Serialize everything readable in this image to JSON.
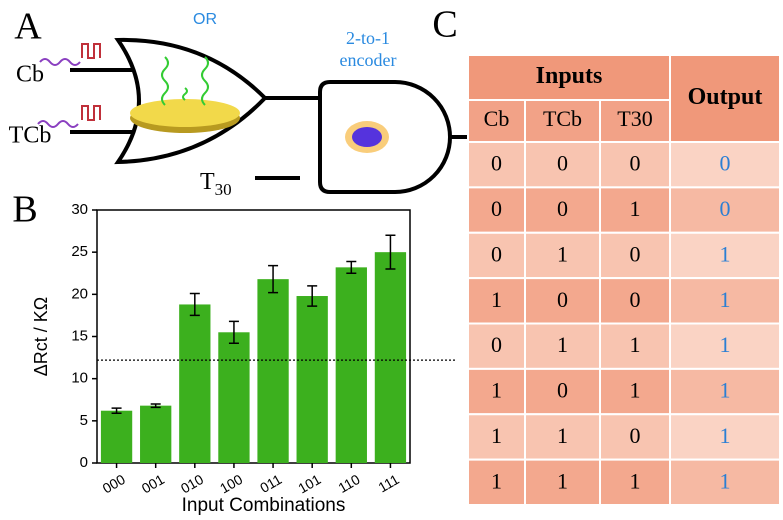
{
  "panel_labels": [
    "A",
    "B",
    "C"
  ],
  "diagram": {
    "gate1_label": "OR",
    "gate2_label": [
      "2-to-1",
      "encoder"
    ],
    "inputs": [
      "Cb",
      "TCb"
    ],
    "third_input": {
      "base": "T",
      "sub": "30"
    }
  },
  "chart_data": {
    "type": "bar",
    "ylabel": "ΔRct / KΩ",
    "xlabel": "Input Combinations",
    "categories": [
      "000",
      "001",
      "010",
      "100",
      "011",
      "101",
      "110",
      "111"
    ],
    "values": [
      6.2,
      6.8,
      18.8,
      15.5,
      21.8,
      19.8,
      23.2,
      25.0
    ],
    "errors": [
      0.3,
      0.2,
      1.3,
      1.3,
      1.6,
      1.2,
      0.7,
      2.0
    ],
    "threshold": 12.2,
    "color": "#3cb01e",
    "ylim": [
      0,
      30
    ],
    "yticks": [
      0,
      5,
      10,
      15,
      20,
      25,
      30
    ]
  },
  "table": {
    "group_header": "Inputs",
    "output_header": "Output",
    "columns": [
      "Cb",
      "TCb",
      "T30"
    ],
    "rows": [
      [
        "0",
        "0",
        "0",
        "0"
      ],
      [
        "0",
        "0",
        "1",
        "0"
      ],
      [
        "0",
        "1",
        "0",
        "1"
      ],
      [
        "1",
        "0",
        "0",
        "1"
      ],
      [
        "0",
        "1",
        "1",
        "1"
      ],
      [
        "1",
        "0",
        "1",
        "1"
      ],
      [
        "1",
        "1",
        "0",
        "1"
      ],
      [
        "1",
        "1",
        "1",
        "1"
      ]
    ]
  }
}
